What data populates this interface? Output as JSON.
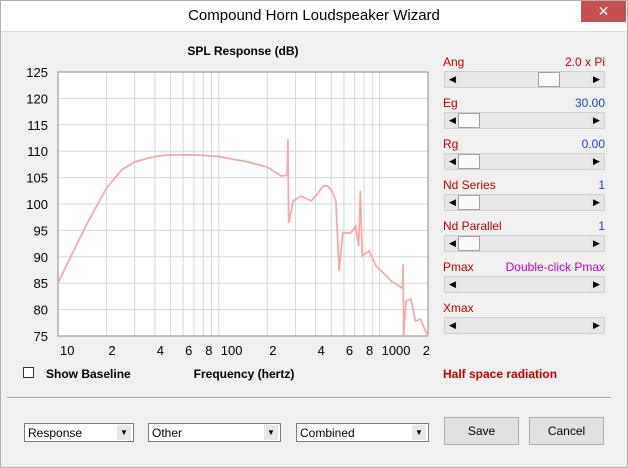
{
  "window": {
    "title": "Compound Horn Loudspeaker Wizard"
  },
  "chart_data": {
    "type": "line",
    "title": "SPL Response (dB)",
    "x_label": "Frequency (hertz)",
    "x_log": true,
    "grid": true,
    "xlim": [
      10,
      2000
    ],
    "ylim": [
      75,
      125
    ],
    "xticks": [
      10,
      {
        "value": 20,
        "label": "2"
      },
      {
        "value": 40,
        "label": "4"
      },
      {
        "value": 60,
        "label": "6"
      },
      {
        "value": 80,
        "label": "8"
      },
      100,
      {
        "value": 200,
        "label": "2"
      },
      {
        "value": 400,
        "label": "4"
      },
      {
        "value": 600,
        "label": "6"
      },
      {
        "value": 800,
        "label": "8"
      },
      1000,
      {
        "value": 2000,
        "label": "2"
      }
    ],
    "x_minor_ticks": [
      30,
      50,
      70,
      90,
      300,
      500,
      700,
      900
    ],
    "yticks": [
      75,
      80,
      85,
      90,
      95,
      100,
      105,
      110,
      115,
      120,
      125
    ],
    "series": [
      {
        "color": "#f4aaaa",
        "x": [
          10,
          12,
          15,
          20,
          25,
          30,
          40,
          50,
          70,
          100,
          150,
          200,
          244,
          266,
          269,
          272,
          290,
          325,
          375,
          410,
          445,
          475,
          505,
          535,
          560,
          590,
          660,
          710,
          740,
          760,
          780,
          860,
          950,
          1100,
          1180,
          1320,
          1390,
          1400,
          1410,
          1460,
          1567,
          1670,
          1800,
          1930,
          2000
        ],
        "values": [
          85,
          90,
          96,
          103,
          106.5,
          108,
          109,
          109.3,
          109.3,
          109,
          108,
          107,
          105.3,
          105.5,
          112.3,
          96.4,
          100.6,
          101.5,
          100.6,
          101.9,
          103.4,
          103.4,
          102.5,
          100.6,
          87.3,
          94.5,
          94.5,
          95.8,
          92,
          102.5,
          90.2,
          91.1,
          88.3,
          86.4,
          85.4,
          84.5,
          84,
          88.6,
          75,
          81.6,
          82,
          77.8,
          78.2,
          75.9,
          75
        ]
      }
    ]
  },
  "controls": [
    {
      "label": "Ang",
      "value": "2.0 x Pi"
    },
    {
      "label": "Eg",
      "value": "30.00"
    },
    {
      "label": "Rg",
      "value": "0.00"
    },
    {
      "label": "Nd  Series",
      "value": "1"
    },
    {
      "label": "Nd  Parallel",
      "value": "1"
    },
    {
      "label": "Pmax",
      "value": "Double-click Pmax"
    },
    {
      "label": "Xmax"
    }
  ],
  "checkbox": "Show Baseline",
  "radiation": "Half space radiation",
  "dropdowns": [
    "Response",
    "Other",
    "Combined"
  ],
  "buttons": [
    "Save",
    "Cancel"
  ]
}
